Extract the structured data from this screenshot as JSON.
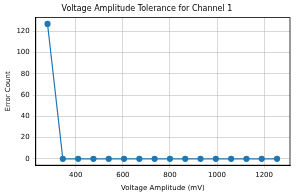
{
  "chart_data": {
    "type": "line",
    "title": "Voltage Amplitude Tolerance for Channel 1",
    "x_label": "Voltage Amplitude (mV)",
    "y_label": "Error Count",
    "x": [
      280,
      345,
      410,
      475,
      540,
      605,
      670,
      735,
      800,
      865,
      930,
      995,
      1060,
      1125,
      1190,
      1255
    ],
    "values": [
      127,
      0,
      0,
      0,
      0,
      0,
      0,
      0,
      0,
      0,
      0,
      0,
      0,
      0,
      0,
      0
    ],
    "color": "#1f77b4",
    "marker": "circle",
    "line_style": "solid",
    "xlim": [
      230,
      1310
    ],
    "xticks": [
      400,
      600,
      800,
      1000,
      1200
    ],
    "ylim": [
      -6,
      133
    ],
    "yticks": [
      0,
      20,
      40,
      60,
      80,
      100,
      120
    ],
    "grid": true
  }
}
